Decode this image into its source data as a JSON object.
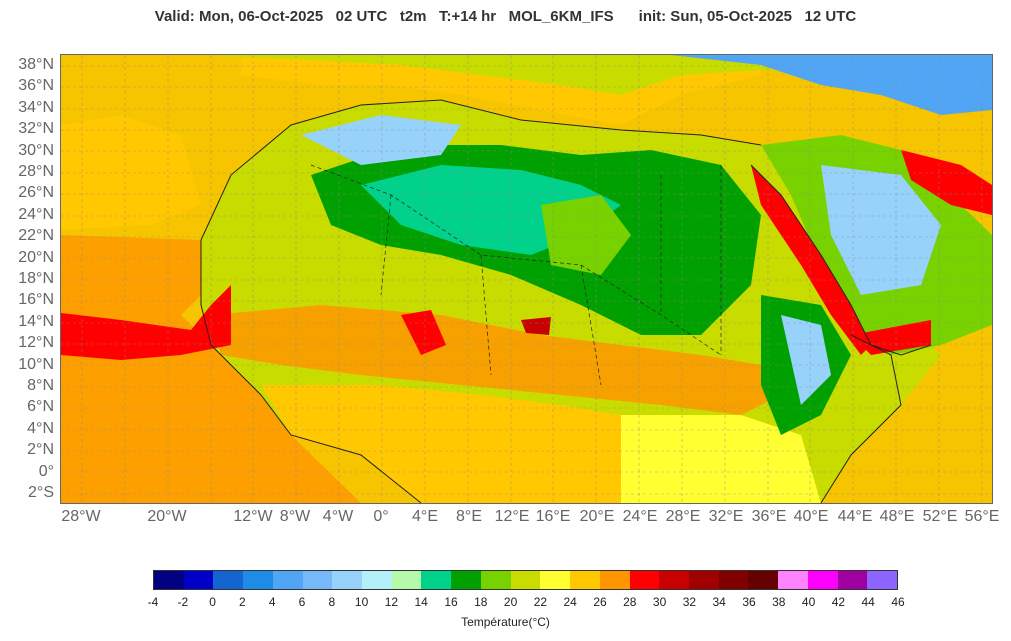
{
  "title": "Valid: Mon, 06-Oct-2025   02 UTC   t2m   T:+14 hr   MOL_6KM_IFS      init: Sun, 05-Oct-2025   12 UTC",
  "lat_labels": [
    "38°N",
    "36°N",
    "34°N",
    "32°N",
    "30°N",
    "28°N",
    "26°N",
    "24°N",
    "22°N",
    "20°N",
    "18°N",
    "16°N",
    "14°N",
    "12°N",
    "10°N",
    "8°N",
    "6°N",
    "4°N",
    "2°N",
    "0°",
    "2°S"
  ],
  "lon_labels": [
    "28°W",
    "20°W",
    "12°W",
    "8°W",
    "4°W",
    "0°",
    "4°E",
    "8°E",
    "12°E",
    "16°E",
    "20°E",
    "24°E",
    "28°E",
    "32°E",
    "36°E",
    "40°E",
    "44°E",
    "48°E",
    "52°E",
    "56°E"
  ],
  "map": {
    "extent": {
      "lon_min": -30,
      "lon_max": 57,
      "lat_min": -3,
      "lat_max": 39
    },
    "variable": "t2m",
    "ocean_color": "#f7c400",
    "legend_colors": [
      "#000080",
      "#0000c8",
      "#1464d2",
      "#1e8ce6",
      "#50a5f5",
      "#78b9fa",
      "#96d2fa",
      "#b4f0fa",
      "#b4faaa",
      "#00d28c",
      "#00a000",
      "#78d200",
      "#c8dc00",
      "#ffff32",
      "#ffc800",
      "#ff9600",
      "#ff0000",
      "#c80000",
      "#a00000",
      "#800000",
      "#640000",
      "#ff82ff",
      "#ff00ff",
      "#a000a0",
      "#8c64ff"
    ]
  },
  "colorbar": {
    "ticks": [
      "-4",
      "-2",
      "0",
      "2",
      "4",
      "6",
      "8",
      "10",
      "12",
      "14",
      "16",
      "18",
      "20",
      "22",
      "24",
      "26",
      "28",
      "30",
      "32",
      "34",
      "36",
      "38",
      "40",
      "42",
      "44",
      "46"
    ],
    "title": "Température(°C)"
  }
}
